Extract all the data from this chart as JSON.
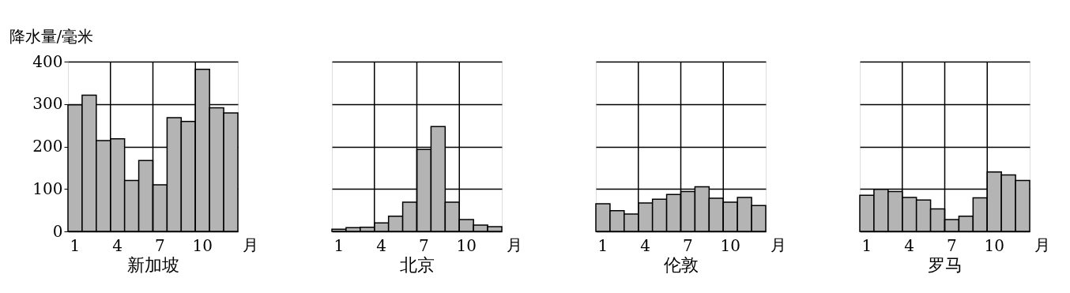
{
  "chart_data": [
    {
      "type": "bar",
      "ylabel": "降水量/毫米",
      "xlabel": "新加坡",
      "categories": [
        "1",
        null,
        null,
        "4",
        null,
        null,
        "7",
        null,
        null,
        "10",
        null,
        null
      ],
      "values": [
        298,
        321,
        214,
        218,
        120,
        167,
        110,
        268,
        259,
        382,
        291,
        279
      ],
      "color": "#b4b4b4",
      "ylim": [
        0,
        400
      ],
      "yticks": [
        0,
        100,
        200,
        300,
        400
      ],
      "grid": true,
      "annotations": [
        "月"
      ]
    },
    {
      "type": "bar",
      "xlabel": "北京",
      "categories": [
        "1",
        null,
        null,
        "4",
        null,
        null,
        "7",
        null,
        null,
        "10",
        null,
        null
      ],
      "values": [
        5,
        9,
        10,
        20,
        36,
        69,
        193,
        247,
        69,
        28,
        15,
        11
      ],
      "color": "#b4b4b4",
      "ylim": [
        0,
        400
      ],
      "yticks": [
        0,
        100,
        200,
        300,
        400
      ],
      "grid": true,
      "tick_labels": "x",
      "annotations": [
        "月"
      ]
    },
    {
      "type": "bar",
      "xlabel": "伦敦",
      "categories": [
        "1",
        null,
        null,
        "4",
        null,
        null,
        "7",
        null,
        null,
        "10",
        null,
        null
      ],
      "values": [
        65,
        49,
        41,
        67,
        76,
        87,
        94,
        105,
        78,
        69,
        80,
        61
      ],
      "color": "#b4b4b4",
      "ylim": [
        0,
        400
      ],
      "yticks": [
        0,
        100,
        200,
        300,
        400
      ],
      "grid": true,
      "tick_labels": "x",
      "annotations": [
        "月"
      ]
    },
    {
      "type": "bar",
      "xlabel": "罗马",
      "categories": [
        "1",
        null,
        null,
        "4",
        null,
        null,
        "7",
        null,
        null,
        "10",
        null,
        null
      ],
      "values": [
        85,
        99,
        94,
        80,
        74,
        53,
        28,
        36,
        79,
        140,
        133,
        120
      ],
      "color": "#b4b4b4",
      "ylim": [
        0,
        400
      ],
      "yticks": [
        0,
        100,
        200,
        300,
        400
      ],
      "grid": true,
      "tick_labels": "x",
      "annotations": [
        "月"
      ]
    }
  ]
}
